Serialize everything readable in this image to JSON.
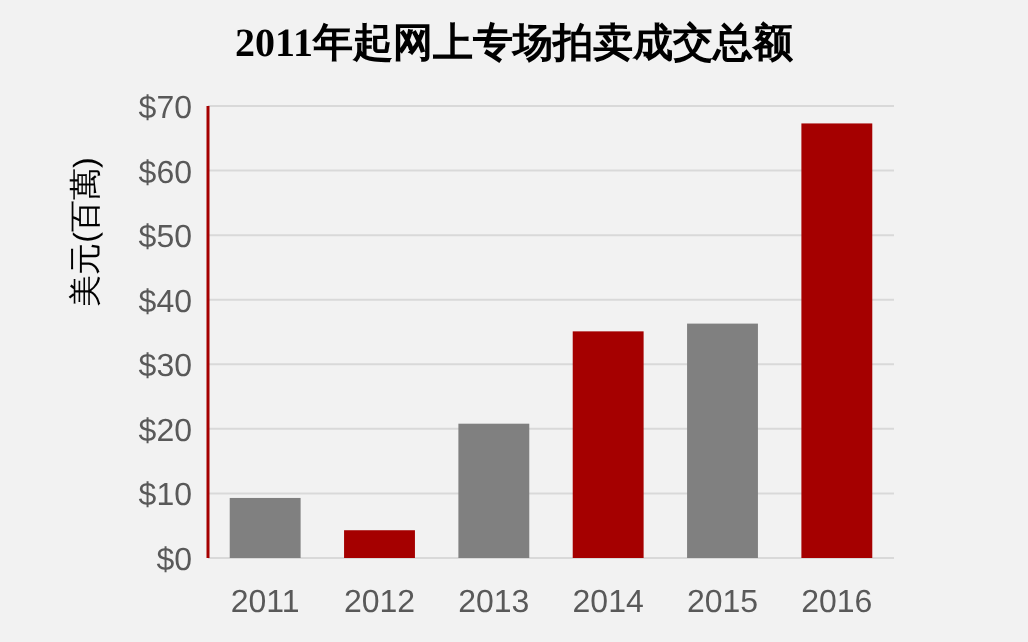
{
  "chart_data": {
    "type": "bar",
    "title": "2011年起网上专场拍卖成交总额",
    "ylabel": "美元(百萬)",
    "categories": [
      "2011",
      "2012",
      "2013",
      "2014",
      "2015",
      "2016"
    ],
    "values": [
      9.3,
      4.3,
      20.8,
      35.1,
      36.3,
      67.3
    ],
    "colors": [
      "#808080",
      "#a50000",
      "#808080",
      "#a50000",
      "#808080",
      "#a50000"
    ],
    "ylim": [
      0,
      70
    ],
    "yticks": [
      {
        "value": 0,
        "label": "$0"
      },
      {
        "value": 10,
        "label": "$10"
      },
      {
        "value": 20,
        "label": "$20"
      },
      {
        "value": 30,
        "label": "$30"
      },
      {
        "value": 40,
        "label": "$40"
      },
      {
        "value": 50,
        "label": "$50"
      },
      {
        "value": 60,
        "label": "$60"
      },
      {
        "value": 70,
        "label": "$70"
      }
    ],
    "grid": "y"
  }
}
